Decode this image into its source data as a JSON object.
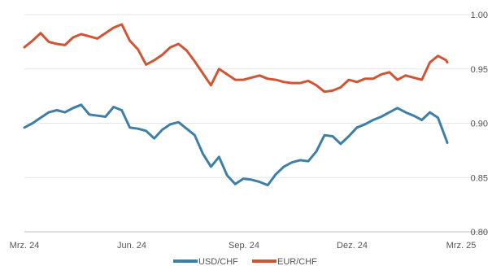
{
  "chart_data": {
    "type": "line",
    "title": "",
    "xlabel": "",
    "ylabel": "",
    "x_ticks": [
      "Mrz. 24",
      "Jun. 24",
      "Sep. 24",
      "Dez. 24",
      "Mrz. 25"
    ],
    "y_ticks": [
      "1.00",
      "0.95",
      "0.90",
      "0.85",
      "0.80"
    ],
    "ylim": [
      0.8,
      1.0
    ],
    "y_axis_side": "right",
    "grid": "horizontal",
    "legend_position": "bottom-center",
    "x_range": [
      "2024-03-01",
      "2025-03-01"
    ],
    "series": [
      {
        "name": "USD/CHF",
        "color": "#3d7fa6",
        "points": [
          [
            "2024-03-01",
            0.896
          ],
          [
            "2024-03-08",
            0.9
          ],
          [
            "2024-03-15",
            0.905
          ],
          [
            "2024-03-22",
            0.91
          ],
          [
            "2024-03-29",
            0.912
          ],
          [
            "2024-04-05",
            0.91
          ],
          [
            "2024-04-12",
            0.914
          ],
          [
            "2024-04-19",
            0.917
          ],
          [
            "2024-04-26",
            0.908
          ],
          [
            "2024-05-03",
            0.907
          ],
          [
            "2024-05-10",
            0.906
          ],
          [
            "2024-05-17",
            0.915
          ],
          [
            "2024-05-24",
            0.912
          ],
          [
            "2024-05-31",
            0.896
          ],
          [
            "2024-06-07",
            0.895
          ],
          [
            "2024-06-14",
            0.893
          ],
          [
            "2024-06-21",
            0.886
          ],
          [
            "2024-06-28",
            0.894
          ],
          [
            "2024-07-05",
            0.899
          ],
          [
            "2024-07-12",
            0.901
          ],
          [
            "2024-07-19",
            0.895
          ],
          [
            "2024-07-26",
            0.889
          ],
          [
            "2024-08-02",
            0.872
          ],
          [
            "2024-08-09",
            0.86
          ],
          [
            "2024-08-16",
            0.869
          ],
          [
            "2024-08-23",
            0.852
          ],
          [
            "2024-08-30",
            0.844
          ],
          [
            "2024-09-06",
            0.849
          ],
          [
            "2024-09-13",
            0.848
          ],
          [
            "2024-09-20",
            0.846
          ],
          [
            "2024-09-27",
            0.843
          ],
          [
            "2024-10-04",
            0.853
          ],
          [
            "2024-10-11",
            0.86
          ],
          [
            "2024-10-18",
            0.864
          ],
          [
            "2024-10-25",
            0.866
          ],
          [
            "2024-11-01",
            0.865
          ],
          [
            "2024-11-08",
            0.874
          ],
          [
            "2024-11-15",
            0.889
          ],
          [
            "2024-11-22",
            0.888
          ],
          [
            "2024-11-29",
            0.881
          ],
          [
            "2024-12-06",
            0.888
          ],
          [
            "2024-12-13",
            0.896
          ],
          [
            "2024-12-20",
            0.899
          ],
          [
            "2024-12-27",
            0.903
          ],
          [
            "2025-01-03",
            0.906
          ],
          [
            "2025-01-10",
            0.91
          ],
          [
            "2025-01-17",
            0.914
          ],
          [
            "2025-01-24",
            0.91
          ],
          [
            "2025-01-31",
            0.907
          ],
          [
            "2025-02-07",
            0.903
          ],
          [
            "2025-02-14",
            0.91
          ],
          [
            "2025-02-21",
            0.905
          ],
          [
            "2025-02-28",
            0.885
          ],
          [
            "2025-03-01",
            0.882
          ]
        ]
      },
      {
        "name": "EUR/CHF",
        "color": "#d05533",
        "points": [
          [
            "2024-03-01",
            0.97
          ],
          [
            "2024-03-08",
            0.976
          ],
          [
            "2024-03-15",
            0.983
          ],
          [
            "2024-03-22",
            0.975
          ],
          [
            "2024-03-29",
            0.973
          ],
          [
            "2024-04-05",
            0.972
          ],
          [
            "2024-04-12",
            0.979
          ],
          [
            "2024-04-19",
            0.982
          ],
          [
            "2024-04-26",
            0.98
          ],
          [
            "2024-05-03",
            0.978
          ],
          [
            "2024-05-10",
            0.983
          ],
          [
            "2024-05-17",
            0.988
          ],
          [
            "2024-05-24",
            0.991
          ],
          [
            "2024-05-31",
            0.976
          ],
          [
            "2024-06-07",
            0.968
          ],
          [
            "2024-06-14",
            0.954
          ],
          [
            "2024-06-21",
            0.958
          ],
          [
            "2024-06-28",
            0.963
          ],
          [
            "2024-07-05",
            0.97
          ],
          [
            "2024-07-12",
            0.973
          ],
          [
            "2024-07-19",
            0.967
          ],
          [
            "2024-07-26",
            0.957
          ],
          [
            "2024-08-02",
            0.946
          ],
          [
            "2024-08-09",
            0.935
          ],
          [
            "2024-08-16",
            0.95
          ],
          [
            "2024-08-23",
            0.945
          ],
          [
            "2024-08-30",
            0.94
          ],
          [
            "2024-09-06",
            0.94
          ],
          [
            "2024-09-13",
            0.942
          ],
          [
            "2024-09-20",
            0.944
          ],
          [
            "2024-09-27",
            0.941
          ],
          [
            "2024-10-04",
            0.94
          ],
          [
            "2024-10-11",
            0.938
          ],
          [
            "2024-10-18",
            0.937
          ],
          [
            "2024-10-25",
            0.937
          ],
          [
            "2024-11-01",
            0.939
          ],
          [
            "2024-11-08",
            0.935
          ],
          [
            "2024-11-15",
            0.929
          ],
          [
            "2024-11-22",
            0.93
          ],
          [
            "2024-11-29",
            0.933
          ],
          [
            "2024-12-06",
            0.94
          ],
          [
            "2024-12-13",
            0.938
          ],
          [
            "2024-12-20",
            0.941
          ],
          [
            "2024-12-27",
            0.941
          ],
          [
            "2025-01-03",
            0.945
          ],
          [
            "2025-01-10",
            0.947
          ],
          [
            "2025-01-17",
            0.94
          ],
          [
            "2025-01-24",
            0.944
          ],
          [
            "2025-01-31",
            0.942
          ],
          [
            "2025-02-07",
            0.94
          ],
          [
            "2025-02-14",
            0.956
          ],
          [
            "2025-02-21",
            0.962
          ],
          [
            "2025-02-28",
            0.958
          ],
          [
            "2025-03-01",
            0.956
          ]
        ]
      }
    ]
  }
}
